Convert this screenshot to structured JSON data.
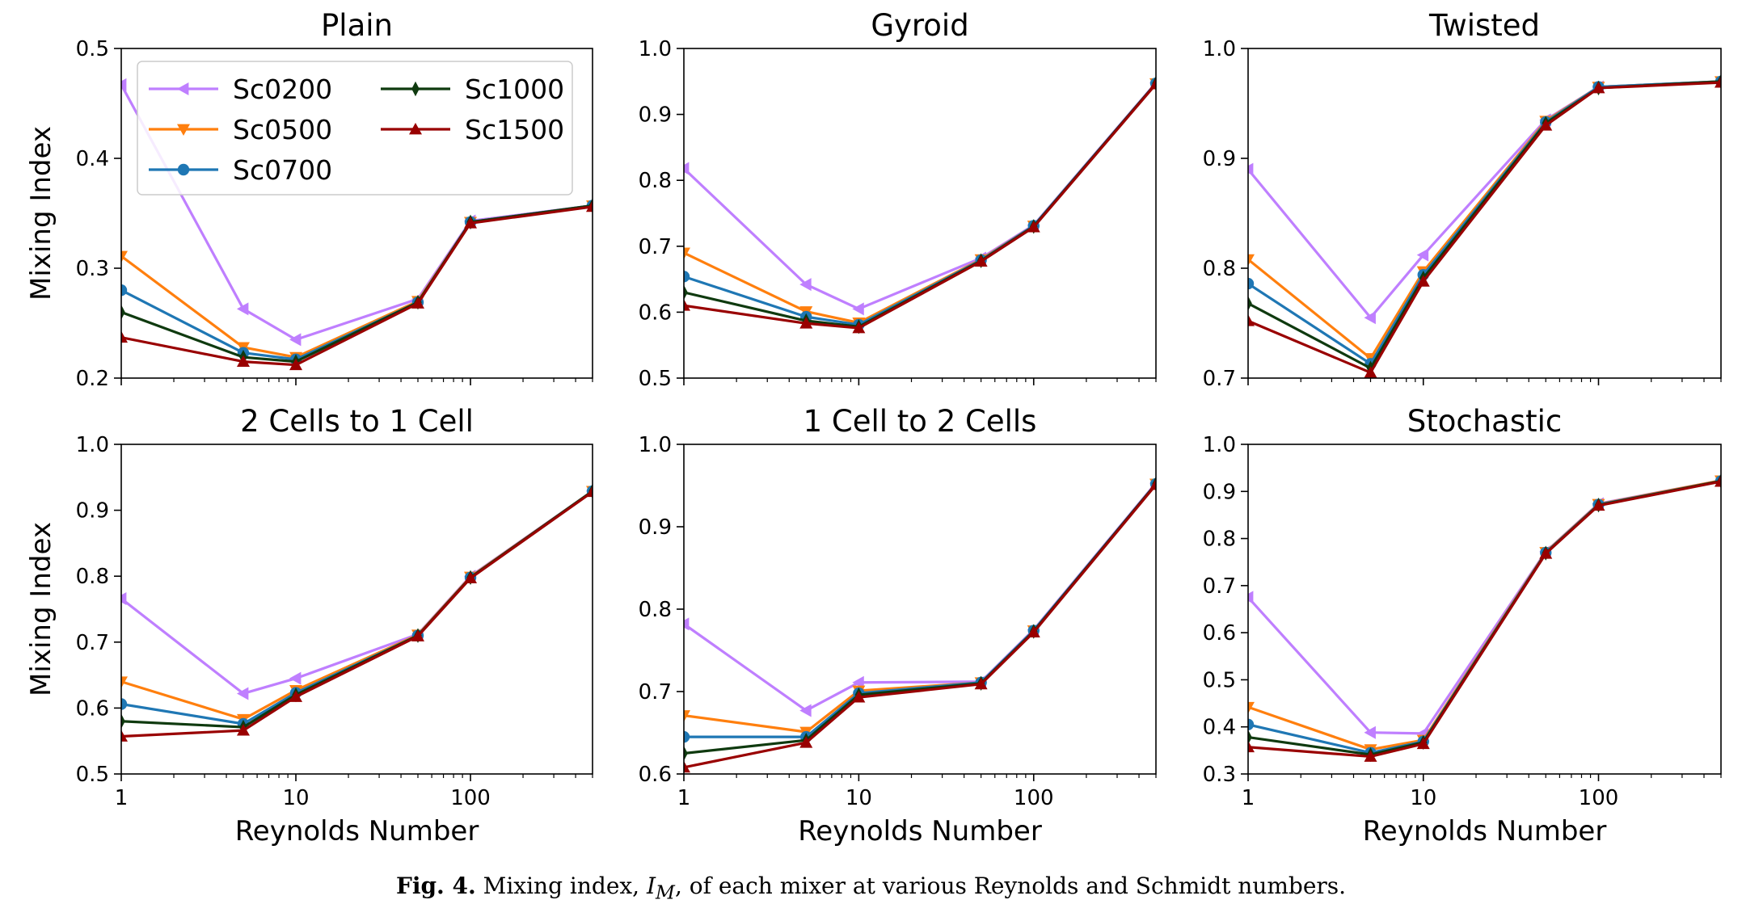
{
  "figure": {
    "caption_label": "Fig. 4.",
    "caption_pre": "Mixing index, ",
    "caption_sym": "I",
    "caption_sub": "M",
    "caption_post": ", of each mixer at various Reynolds and Schmidt numbers."
  },
  "colors": {
    "Sc0200": "#bf7fff",
    "Sc0500": "#ff7f0e",
    "Sc0700": "#1f77b4",
    "Sc1000": "#0f3a0f",
    "Sc1500": "#990000"
  },
  "chart_data": [
    {
      "type": "line",
      "title": "Plain",
      "xlabel": "",
      "ylabel": "Mixing Index",
      "xscale": "log",
      "xlim": [
        1,
        500
      ],
      "ylim": [
        0.2,
        0.5
      ],
      "yticks": [
        "0.2",
        "0.3",
        "0.4",
        "0.5"
      ],
      "xticks": [],
      "legend": "top-left",
      "x": [
        1,
        5,
        10,
        50,
        100,
        500
      ],
      "series": [
        {
          "name": "Sc0200",
          "marker": "triangle-left",
          "values": [
            0.467,
            0.263,
            0.235,
            0.272,
            0.343,
            0.357
          ]
        },
        {
          "name": "Sc0500",
          "marker": "triangle-down",
          "values": [
            0.311,
            0.228,
            0.219,
            0.27,
            0.342,
            0.357
          ]
        },
        {
          "name": "Sc0700",
          "marker": "circle",
          "values": [
            0.28,
            0.223,
            0.217,
            0.269,
            0.342,
            0.357
          ]
        },
        {
          "name": "Sc1000",
          "marker": "diamond",
          "values": [
            0.26,
            0.219,
            0.215,
            0.269,
            0.342,
            0.357
          ]
        },
        {
          "name": "Sc1500",
          "marker": "triangle-up",
          "values": [
            0.237,
            0.215,
            0.212,
            0.268,
            0.341,
            0.356
          ]
        }
      ]
    },
    {
      "type": "line",
      "title": "Gyroid",
      "xlabel": "",
      "ylabel": "",
      "xscale": "log",
      "xlim": [
        1,
        500
      ],
      "ylim": [
        0.5,
        1.0
      ],
      "yticks": [
        "0.5",
        "0.6",
        "0.7",
        "0.8",
        "0.9",
        "1.0"
      ],
      "xticks": [],
      "x": [
        1,
        5,
        10,
        50,
        100,
        500
      ],
      "series": [
        {
          "name": "Sc0200",
          "marker": "triangle-left",
          "values": [
            0.818,
            0.642,
            0.605,
            0.682,
            0.732,
            0.948
          ]
        },
        {
          "name": "Sc0500",
          "marker": "triangle-down",
          "values": [
            0.69,
            0.601,
            0.584,
            0.68,
            0.731,
            0.947
          ]
        },
        {
          "name": "Sc0700",
          "marker": "circle",
          "values": [
            0.654,
            0.593,
            0.581,
            0.679,
            0.731,
            0.947
          ]
        },
        {
          "name": "Sc1000",
          "marker": "diamond",
          "values": [
            0.63,
            0.587,
            0.578,
            0.678,
            0.73,
            0.947
          ]
        },
        {
          "name": "Sc1500",
          "marker": "triangle-up",
          "values": [
            0.61,
            0.583,
            0.576,
            0.677,
            0.729,
            0.946
          ]
        }
      ]
    },
    {
      "type": "line",
      "title": "Twisted",
      "xlabel": "",
      "ylabel": "",
      "xscale": "log",
      "xlim": [
        1,
        500
      ],
      "ylim": [
        0.7,
        1.0
      ],
      "yticks": [
        "0.7",
        "0.8",
        "0.9",
        "1.0"
      ],
      "xticks": [],
      "x": [
        1,
        5,
        10,
        50,
        100,
        500
      ],
      "series": [
        {
          "name": "Sc0200",
          "marker": "triangle-left",
          "values": [
            0.89,
            0.755,
            0.812,
            0.935,
            0.965,
            0.97
          ]
        },
        {
          "name": "Sc0500",
          "marker": "triangle-down",
          "values": [
            0.808,
            0.718,
            0.797,
            0.934,
            0.965,
            0.97
          ]
        },
        {
          "name": "Sc0700",
          "marker": "circle",
          "values": [
            0.786,
            0.713,
            0.794,
            0.933,
            0.965,
            0.97
          ]
        },
        {
          "name": "Sc1000",
          "marker": "diamond",
          "values": [
            0.768,
            0.709,
            0.791,
            0.932,
            0.964,
            0.97
          ]
        },
        {
          "name": "Sc1500",
          "marker": "triangle-up",
          "values": [
            0.752,
            0.705,
            0.788,
            0.93,
            0.964,
            0.969
          ]
        }
      ]
    },
    {
      "type": "line",
      "title": "2 Cells to 1 Cell",
      "xlabel": "Reynolds Number",
      "ylabel": "Mixing Index",
      "xscale": "log",
      "xlim": [
        1,
        500
      ],
      "ylim": [
        0.5,
        1.0
      ],
      "yticks": [
        "0.5",
        "0.6",
        "0.7",
        "0.8",
        "0.9",
        "1.0"
      ],
      "xticks": [
        "1",
        "10",
        "100"
      ],
      "x": [
        1,
        5,
        10,
        50,
        100,
        500
      ],
      "series": [
        {
          "name": "Sc0200",
          "marker": "triangle-left",
          "values": [
            0.766,
            0.622,
            0.645,
            0.712,
            0.8,
            0.929
          ]
        },
        {
          "name": "Sc0500",
          "marker": "triangle-down",
          "values": [
            0.64,
            0.583,
            0.627,
            0.711,
            0.799,
            0.929
          ]
        },
        {
          "name": "Sc0700",
          "marker": "circle",
          "values": [
            0.606,
            0.576,
            0.623,
            0.71,
            0.798,
            0.929
          ]
        },
        {
          "name": "Sc1000",
          "marker": "diamond",
          "values": [
            0.58,
            0.571,
            0.62,
            0.71,
            0.798,
            0.929
          ]
        },
        {
          "name": "Sc1500",
          "marker": "triangle-up",
          "values": [
            0.557,
            0.566,
            0.617,
            0.709,
            0.797,
            0.928
          ]
        }
      ]
    },
    {
      "type": "line",
      "title": "1 Cell to 2 Cells",
      "xlabel": "Reynolds Number",
      "ylabel": "",
      "xscale": "log",
      "xlim": [
        1,
        500
      ],
      "ylim": [
        0.6,
        1.0
      ],
      "yticks": [
        "0.6",
        "0.7",
        "0.8",
        "0.9",
        "1.0"
      ],
      "xticks": [
        "1",
        "10",
        "100"
      ],
      "x": [
        1,
        5,
        10,
        50,
        100,
        500
      ],
      "series": [
        {
          "name": "Sc0200",
          "marker": "triangle-left",
          "values": [
            0.782,
            0.677,
            0.711,
            0.712,
            0.775,
            0.953
          ]
        },
        {
          "name": "Sc0500",
          "marker": "triangle-down",
          "values": [
            0.671,
            0.651,
            0.701,
            0.711,
            0.774,
            0.952
          ]
        },
        {
          "name": "Sc0700",
          "marker": "circle",
          "values": [
            0.645,
            0.645,
            0.698,
            0.711,
            0.774,
            0.952
          ]
        },
        {
          "name": "Sc1000",
          "marker": "diamond",
          "values": [
            0.625,
            0.641,
            0.696,
            0.71,
            0.773,
            0.952
          ]
        },
        {
          "name": "Sc1500",
          "marker": "triangle-up",
          "values": [
            0.608,
            0.638,
            0.693,
            0.709,
            0.772,
            0.951
          ]
        }
      ]
    },
    {
      "type": "line",
      "title": "Stochastic",
      "xlabel": "Reynolds Number",
      "ylabel": "",
      "xscale": "log",
      "xlim": [
        1,
        500
      ],
      "ylim": [
        0.3,
        1.0
      ],
      "yticks": [
        "0.3",
        "0.4",
        "0.5",
        "0.6",
        "0.7",
        "0.8",
        "0.9",
        "1.0"
      ],
      "xticks": [
        "1",
        "10",
        "100"
      ],
      "x": [
        1,
        5,
        10,
        50,
        100,
        500
      ],
      "series": [
        {
          "name": "Sc0200",
          "marker": "triangle-left",
          "values": [
            0.675,
            0.388,
            0.386,
            0.772,
            0.874,
            0.923
          ]
        },
        {
          "name": "Sc0500",
          "marker": "triangle-down",
          "values": [
            0.442,
            0.352,
            0.372,
            0.771,
            0.873,
            0.923
          ]
        },
        {
          "name": "Sc0700",
          "marker": "circle",
          "values": [
            0.405,
            0.345,
            0.369,
            0.77,
            0.872,
            0.922
          ]
        },
        {
          "name": "Sc1000",
          "marker": "diamond",
          "values": [
            0.378,
            0.341,
            0.367,
            0.769,
            0.871,
            0.922
          ]
        },
        {
          "name": "Sc1500",
          "marker": "triangle-up",
          "values": [
            0.357,
            0.337,
            0.364,
            0.768,
            0.87,
            0.921
          ]
        }
      ]
    }
  ]
}
